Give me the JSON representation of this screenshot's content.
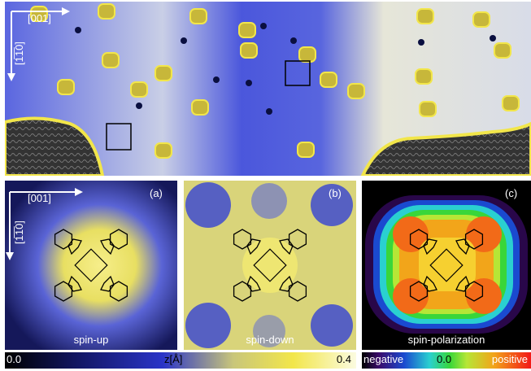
{
  "top_panel": {
    "axis_x": "[001]",
    "axis_y": "[1̅1̅0]"
  },
  "panel_a": {
    "letter": "(a)",
    "caption": "spin-up",
    "axis_x": "[001]",
    "axis_y": "[1̅1̅0]"
  },
  "panel_b": {
    "letter": "(b)",
    "caption": "spin-down"
  },
  "panel_c": {
    "letter": "(c)",
    "caption": "spin-polarization"
  },
  "colorbar_z": {
    "min": "0.0",
    "max": "0.4",
    "unit": "z[Å]"
  },
  "colorbar_spin": {
    "negative": "negative",
    "zero": "0.0",
    "positive": "positive"
  },
  "colors": {
    "blue": "#2a34c8",
    "yellow": "#f2e64a",
    "black": "#000000"
  }
}
